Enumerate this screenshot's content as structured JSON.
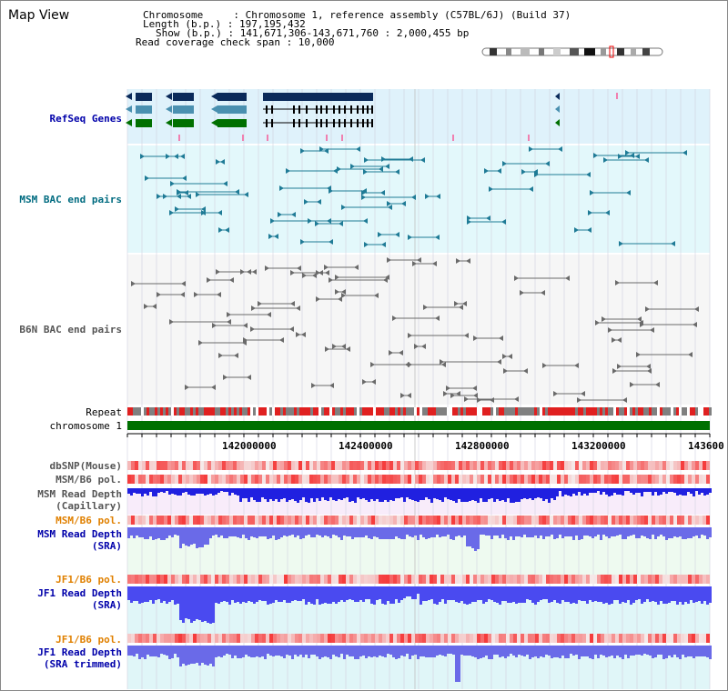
{
  "page_title": "Map View",
  "header": {
    "chromosome": "Chromosome     : Chromosome 1, reference assembly (C57BL/6J) (Build 37)",
    "length": "Length (b.p.) : 197,195,432",
    "show": "Show (b.p.) : 141,671,306-143,671,760 : 2,000,455 bp",
    "read_span": "Read coverage check span : 10,000"
  },
  "tracks": {
    "refseq": "RefSeq Genes",
    "msm_bac": "MSM BAC end pairs",
    "b6n_bac": "B6N BAC end pairs",
    "repeat": "Repeat",
    "chromosome": "chromosome 1",
    "dbsnp": "dbSNP(Mouse)",
    "msm_b6_pol": "MSM/B6 pol.",
    "msm_depth_cap_1": "MSM Read Depth",
    "msm_depth_cap_2": "(Capillary)",
    "msm_b6_pol2": "MSM/B6 pol.",
    "msm_depth_sra_1": "MSM Read Depth",
    "msm_depth_sra_2": "(SRA)",
    "jf1_b6_pol": "JF1/B6 pol.",
    "jf1_depth_sra_1": "JF1 Read Depth",
    "jf1_depth_sra_2": "(SRA)",
    "jf1_b6_pol2": "JF1/B6 pol.",
    "jf1_depth_trim_1": "JF1 Read Depth",
    "jf1_depth_trim_2": "(SRA trimmed)"
  },
  "axis": {
    "ticks": [
      "142000000",
      "142400000",
      "142800000",
      "143200000",
      "143600"
    ]
  },
  "colors": {
    "refseq_label": "#0000aa",
    "msm_label": "#006b80",
    "orange_label": "#e08000",
    "blue_label": "#0000aa",
    "gene_navy": "#0a2a5a",
    "gene_teal": "#4a90b0",
    "gene_green": "#007000",
    "chromosome_bar": "#007000"
  }
}
